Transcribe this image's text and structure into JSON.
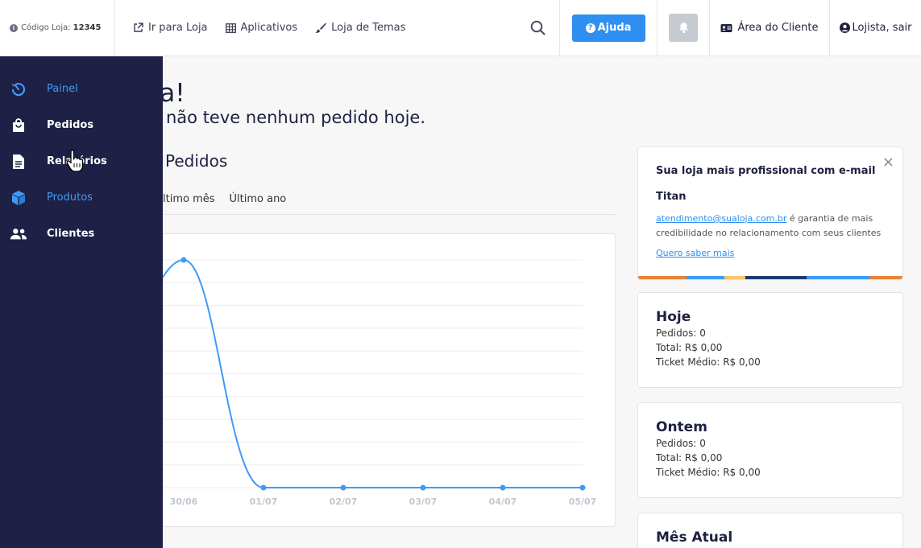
{
  "topbar": {
    "store_code_label": "Código Loja:",
    "store_code_value": "12345",
    "links": [
      {
        "label": "Ir para Loja",
        "icon": "external-link-icon"
      },
      {
        "label": "Aplicativos",
        "icon": "grid-icon"
      },
      {
        "label": "Loja de Temas",
        "icon": "brush-icon"
      }
    ],
    "help_label": "Ajuda",
    "client_area_label": "Área do Cliente",
    "user_label": "Lojista, sair"
  },
  "sidebar": {
    "items": [
      {
        "label": "Painel",
        "icon": "dashboard-icon"
      },
      {
        "label": "Pedidos",
        "icon": "shopping-bag-icon"
      },
      {
        "label": "Relatórios",
        "icon": "document-icon"
      },
      {
        "label": "Produtos",
        "icon": "box-icon"
      },
      {
        "label": "Clientes",
        "icon": "users-icon"
      }
    ]
  },
  "main": {
    "greeting": "sta!",
    "subgreeting": "não teve nenhum pedido hoje.",
    "section_title": "Pedidos",
    "tabs": [
      "ltimo mês",
      "Último ano"
    ]
  },
  "chart_data": {
    "type": "line",
    "categories": [
      "30/06",
      "01/07",
      "02/07",
      "03/07",
      "04/07",
      "05/07"
    ],
    "values": [
      1,
      0,
      0,
      0,
      0,
      0
    ],
    "ylim": [
      0,
      1
    ],
    "grid": true,
    "color": "#3e9bf5"
  },
  "promo": {
    "title": "Sua loja mais profissional com e-mail",
    "subtitle": "Titan",
    "email": "atendimento@sualoja.com.br",
    "text": " é garantia de mais credibilidade no relacionamento com seus clientes",
    "link": "Quero saber mais"
  },
  "stats": [
    {
      "title": "Hoje",
      "pedidos": "Pedidos: 0",
      "total": "Total: R$ 0,00",
      "ticket": "Ticket Médio: R$ 0,00"
    },
    {
      "title": "Ontem",
      "pedidos": "Pedidos: 0",
      "total": "Total: R$ 0,00",
      "ticket": "Ticket Médio: R$ 0,00"
    },
    {
      "title": "Mês Atual"
    }
  ]
}
